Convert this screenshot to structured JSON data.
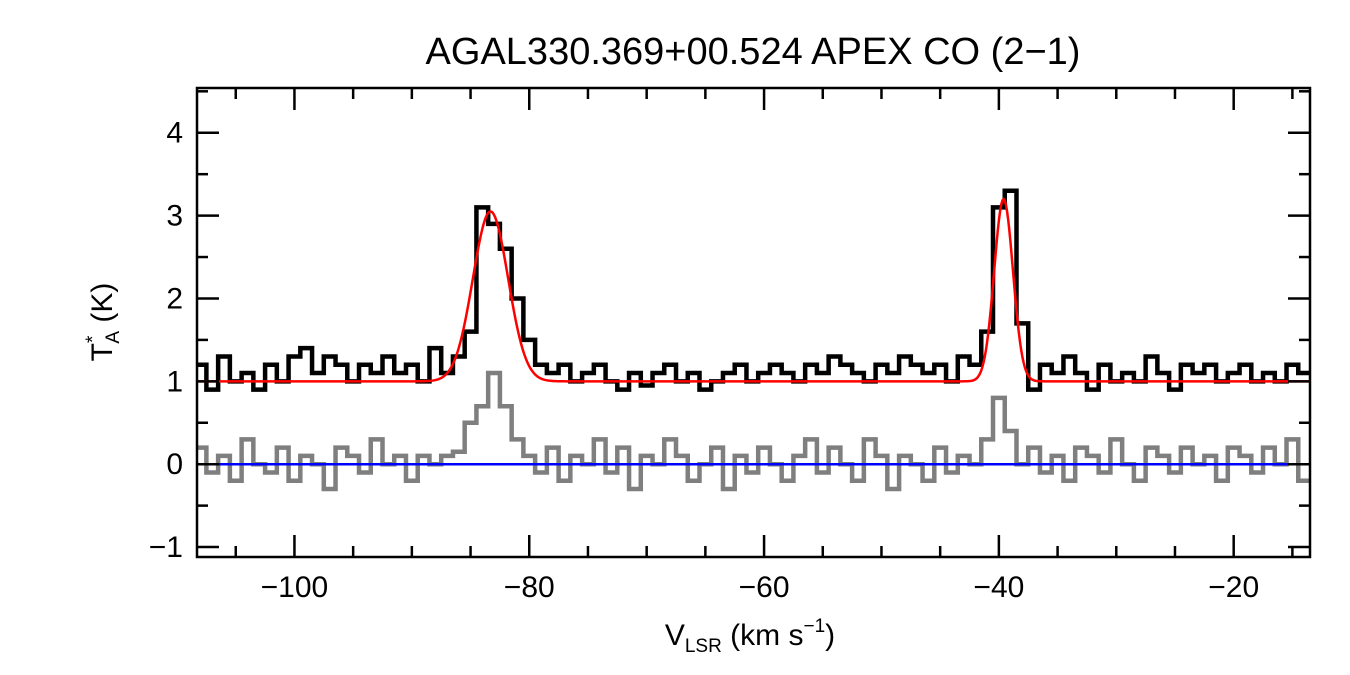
{
  "chart_data": {
    "type": "line",
    "title": "AGAL330.369+00.524  APEX CO (2−1)",
    "xlabel": {
      "main": "V",
      "sub": "LSR",
      "rest": " (km s",
      "sup": "−1",
      "end": ")"
    },
    "ylabel": {
      "main": "T",
      "sup": "*",
      "sub": "A",
      "rest": " (K)"
    },
    "xlim": [
      -108.3,
      -13.5
    ],
    "ylim": [
      -1.12,
      4.54
    ],
    "xticks": [
      -100,
      -80,
      -60,
      -40,
      -20
    ],
    "xtick_labels": [
      "−100",
      "−80",
      "−60",
      "−40",
      "−20"
    ],
    "yticks": [
      -1,
      0,
      1,
      2,
      3,
      4
    ],
    "ytick_labels": [
      "−1",
      "0",
      "1",
      "2",
      "3",
      "4"
    ],
    "x_minor_step": 5,
    "y_minor_step": 0.5,
    "grid": false,
    "x": [
      -108,
      -107,
      -106,
      -105,
      -104,
      -103,
      -102,
      -101,
      -100,
      -99,
      -98,
      -97,
      -96,
      -95,
      -94,
      -93,
      -92,
      -91,
      -90,
      -89,
      -88,
      -87,
      -86,
      -85,
      -84,
      -83,
      -82,
      -81,
      -80,
      -79,
      -78,
      -77,
      -76,
      -75,
      -74,
      -73,
      -72,
      -71,
      -70,
      -69,
      -68,
      -67,
      -66,
      -65,
      -64,
      -63,
      -62,
      -61,
      -60,
      -59,
      -58,
      -57,
      -56,
      -55,
      -54,
      -53,
      -52,
      -51,
      -50,
      -49,
      -48,
      -47,
      -46,
      -45,
      -44,
      -43,
      -42,
      -41,
      -40,
      -39,
      -38,
      -37,
      -36,
      -35,
      -34,
      -33,
      -32,
      -31,
      -30,
      -29,
      -28,
      -27,
      -26,
      -25,
      -24,
      -23,
      -22,
      -21,
      -20,
      -19,
      -18,
      -17,
      -16,
      -15,
      -14
    ],
    "series": [
      {
        "role": "spectrum",
        "color": "#000000",
        "style": "histogram",
        "values": [
          1.2,
          0.9,
          1.3,
          1.0,
          1.1,
          0.9,
          1.2,
          1.0,
          1.3,
          1.4,
          1.1,
          1.3,
          1.2,
          1.0,
          1.2,
          1.1,
          1.3,
          1.1,
          1.2,
          1.0,
          1.4,
          1.1,
          1.3,
          1.6,
          3.1,
          2.9,
          2.6,
          2.0,
          1.5,
          1.2,
          1.1,
          1.2,
          1.0,
          1.1,
          1.2,
          1.0,
          0.9,
          1.1,
          0.95,
          1.1,
          1.2,
          1.0,
          1.1,
          0.9,
          1.0,
          1.1,
          1.2,
          1.0,
          1.1,
          1.2,
          1.1,
          1.0,
          1.2,
          1.1,
          1.3,
          1.2,
          1.1,
          1.0,
          1.2,
          1.1,
          1.3,
          1.2,
          1.1,
          1.2,
          1.0,
          1.3,
          1.2,
          1.6,
          3.1,
          3.3,
          1.7,
          0.9,
          1.2,
          1.1,
          1.3,
          1.1,
          0.9,
          1.2,
          1.0,
          1.1,
          1.0,
          1.3,
          1.1,
          0.9,
          1.2,
          1.1,
          1.2,
          1.0,
          1.1,
          1.2,
          1.0,
          1.1,
          1.0,
          1.2,
          1.1
        ]
      },
      {
        "role": "secondary-spectrum",
        "color": "#7f7f7f",
        "style": "histogram",
        "values": [
          0.2,
          -0.1,
          0.1,
          -0.2,
          0.3,
          0.0,
          -0.1,
          0.2,
          -0.2,
          0.1,
          0.0,
          -0.3,
          0.2,
          0.1,
          -0.1,
          0.3,
          0.0,
          0.1,
          -0.2,
          0.1,
          0.0,
          0.1,
          0.15,
          0.5,
          0.7,
          1.1,
          0.7,
          0.3,
          0.1,
          -0.1,
          0.2,
          -0.2,
          0.1,
          0.0,
          0.3,
          -0.1,
          0.2,
          -0.3,
          0.1,
          0.0,
          0.3,
          0.1,
          -0.2,
          0.0,
          0.2,
          -0.3,
          0.1,
          -0.1,
          0.2,
          0.0,
          -0.2,
          0.1,
          0.3,
          -0.1,
          0.2,
          0.0,
          -0.2,
          0.3,
          0.1,
          -0.3,
          0.1,
          0.0,
          -0.2,
          0.2,
          -0.1,
          0.1,
          0.0,
          0.3,
          0.8,
          0.4,
          0.0,
          0.2,
          -0.1,
          0.1,
          -0.2,
          0.2,
          0.1,
          -0.1,
          0.3,
          0.0,
          -0.2,
          0.2,
          0.1,
          -0.1,
          0.2,
          0.0,
          0.1,
          -0.2,
          0.2,
          0.1,
          -0.1,
          0.2,
          0.0,
          0.3,
          -0.2
        ]
      }
    ],
    "fit": {
      "color": "#ff0000",
      "baseline": 1.0,
      "components": [
        {
          "center": -83.3,
          "amplitude": 2.05,
          "sigma": 1.5
        },
        {
          "center": -39.6,
          "amplitude": 2.2,
          "sigma": 0.8
        }
      ]
    },
    "zero_line": {
      "value": 0,
      "color": "#0000ff"
    }
  }
}
